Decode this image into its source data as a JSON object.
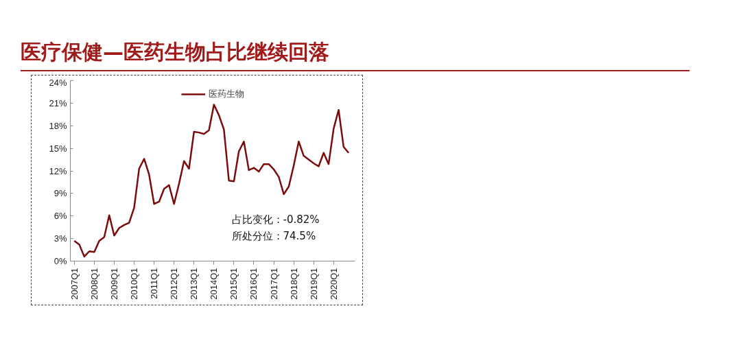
{
  "chart_data": {
    "type": "line",
    "title": "医疗保健—医药生物占比继续回落",
    "categories": [
      "2007Q1",
      null,
      null,
      null,
      "2008Q1",
      null,
      null,
      null,
      "2009Q1",
      null,
      null,
      null,
      "2010Q1",
      null,
      null,
      null,
      "2011Q1",
      null,
      null,
      null,
      "2012Q1",
      null,
      null,
      null,
      "2013Q1",
      null,
      null,
      null,
      "2014Q1",
      null,
      null,
      null,
      "2015Q1",
      null,
      null,
      null,
      "2016Q1",
      null,
      null,
      null,
      "2017Q1",
      null,
      null,
      null,
      "2018Q1",
      null,
      null,
      null,
      "2019Q1",
      null,
      null,
      null,
      "2020Q1",
      null,
      null,
      null
    ],
    "series": [
      {
        "name": "医药生物",
        "color": "#7b0c0c",
        "values": [
          2.7,
          2.2,
          0.6,
          1.3,
          1.2,
          2.7,
          3.2,
          6.1,
          3.4,
          4.4,
          4.8,
          5.1,
          7.1,
          12.3,
          13.6,
          11.5,
          7.6,
          7.9,
          9.6,
          10.1,
          7.6,
          10.3,
          13.3,
          12.3,
          17.2,
          17.1,
          16.9,
          17.4,
          20.8,
          19.4,
          17.5,
          10.7,
          10.6,
          14.6,
          15.9,
          12.1,
          12.4,
          11.9,
          12.9,
          12.9,
          12.2,
          11.2,
          8.9,
          9.9,
          12.7,
          15.9,
          14.0,
          13.5,
          13.0,
          12.6,
          14.4,
          12.9,
          17.6,
          20.1,
          15.2,
          14.4
        ]
      }
    ],
    "ylim": [
      0,
      24
    ],
    "yticks": [
      {
        "value": 0,
        "label": "0%"
      },
      {
        "value": 3,
        "label": "3%"
      },
      {
        "value": 6,
        "label": "6%"
      },
      {
        "value": 9,
        "label": "9%"
      },
      {
        "value": 12,
        "label": "12%"
      },
      {
        "value": 15,
        "label": "15%"
      },
      {
        "value": 18,
        "label": "18%"
      },
      {
        "value": 21,
        "label": "21%"
      },
      {
        "value": 24,
        "label": "24%"
      }
    ],
    "annotations": [
      "占比变化：-0.82%",
      "所处分位：74.5%"
    ],
    "legend": "top",
    "marker": "none",
    "line_style": "solid"
  }
}
